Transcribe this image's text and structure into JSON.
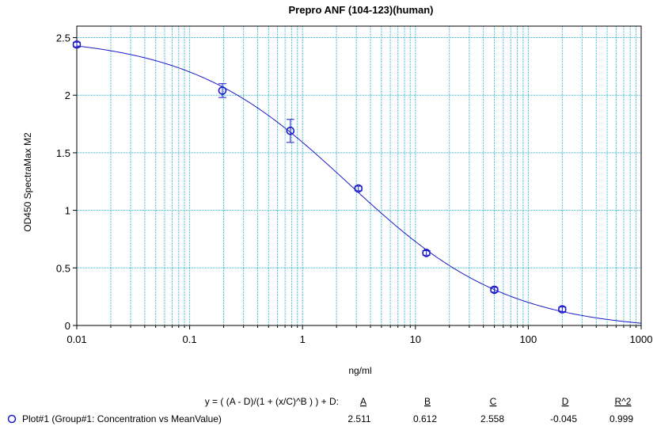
{
  "chart_data": {
    "type": "scatter",
    "title": "Prepro ANF (104-123)(human)",
    "xlabel": "ng/ml",
    "ylabel": "OD450 SpectraMax M2",
    "x_scale": "log",
    "xlim": [
      0.01,
      1000
    ],
    "ylim": [
      0,
      2.6
    ],
    "x_ticks": [
      0.01,
      0.1,
      1,
      10,
      100,
      1000
    ],
    "x_tick_labels": [
      "0.01",
      "0.1",
      "1",
      "10",
      "100",
      "1000"
    ],
    "y_ticks": [
      0,
      0.5,
      1,
      1.5,
      2,
      2.5
    ],
    "y_tick_labels": [
      "0",
      "0.5",
      "1",
      "1.5",
      "2",
      "2.5"
    ],
    "grid": true,
    "series": [
      {
        "name": "Plot#1 (Group#1: Concentration vs MeanValue)",
        "color": "#1a1ac8",
        "points": [
          {
            "x": 0.01,
            "y": 2.44,
            "err": 0.02
          },
          {
            "x": 0.195,
            "y": 2.04,
            "err": 0.06
          },
          {
            "x": 0.78,
            "y": 1.69,
            "err": 0.1
          },
          {
            "x": 3.125,
            "y": 1.19,
            "err": 0.02
          },
          {
            "x": 12.5,
            "y": 0.63,
            "err": 0.02
          },
          {
            "x": 50,
            "y": 0.31,
            "err": 0.02
          },
          {
            "x": 200,
            "y": 0.14,
            "err": 0.02
          }
        ],
        "fit": {
          "model": "4PL",
          "A": 2.511,
          "B": 0.612,
          "C": 2.558,
          "D": -0.045,
          "R2": 0.999
        }
      }
    ]
  },
  "legend": {
    "equation": "y = ( (A - D)/(1 + (x/C)^B ) ) + D:",
    "headers": [
      "A",
      "B",
      "C",
      "D",
      "R^2"
    ],
    "label": "Plot#1 (Group#1: Concentration vs MeanValue)",
    "values": [
      "2.511",
      "0.612",
      "2.558",
      "-0.045",
      "0.999"
    ]
  },
  "colors": {
    "data": "#1a1ac8",
    "grid": "#22b4d8",
    "axis": "#000000"
  }
}
